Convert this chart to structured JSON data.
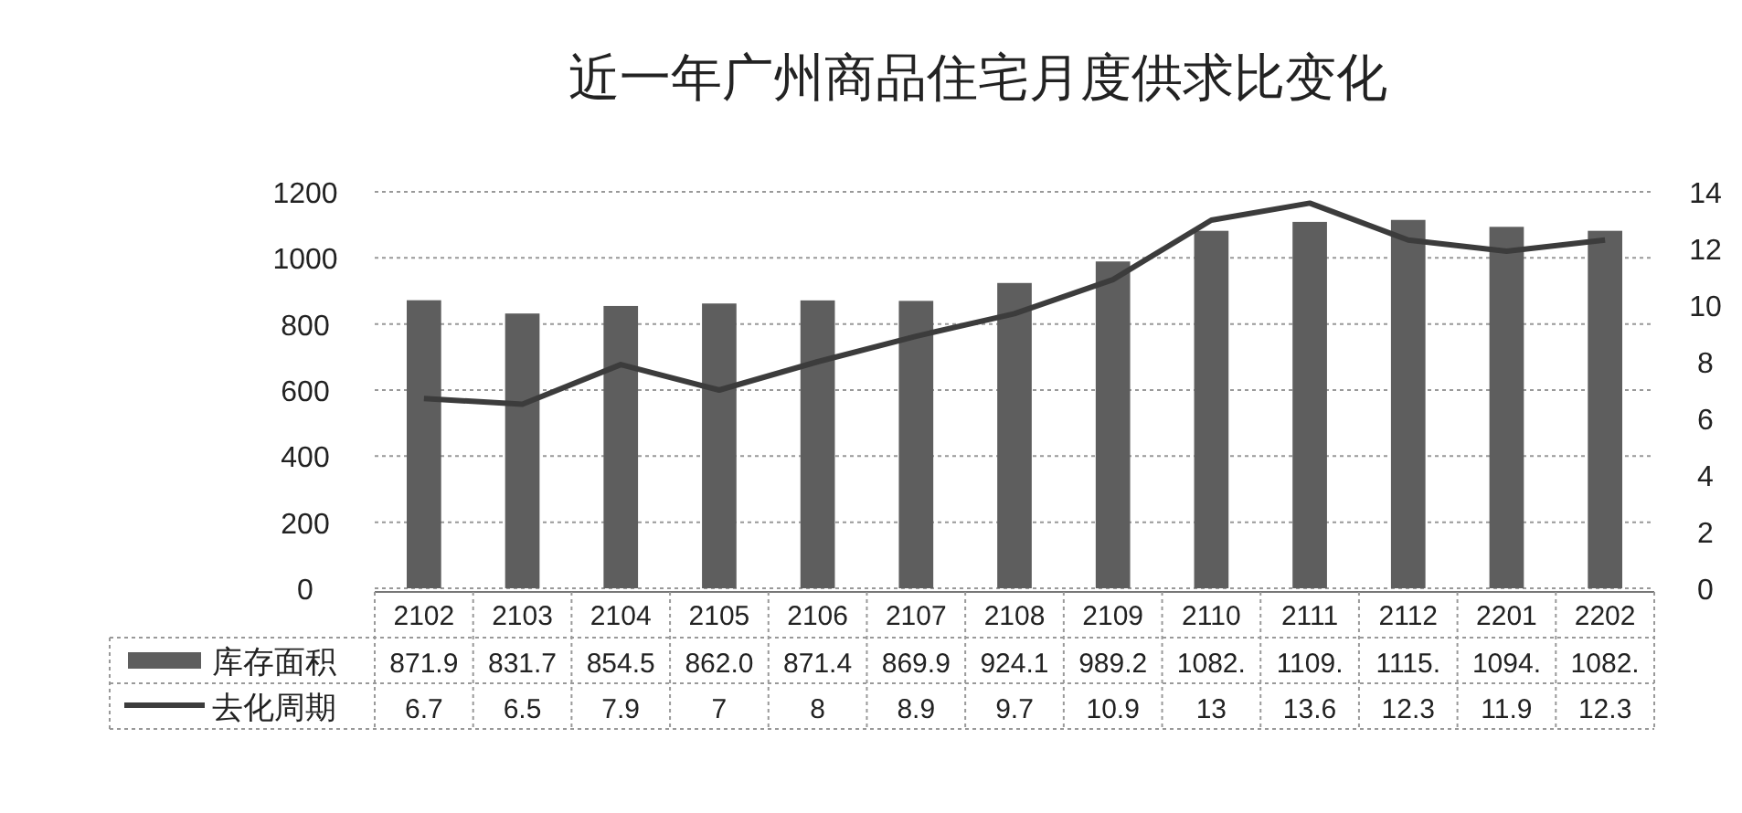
{
  "chart_data": {
    "type": "bar",
    "title": "近一年广州商品住宅月度供求比变化",
    "categories": [
      "2102",
      "2103",
      "2104",
      "2105",
      "2106",
      "2107",
      "2108",
      "2109",
      "2110",
      "2111",
      "2112",
      "2201",
      "2202"
    ],
    "series": [
      {
        "name": "库存面积",
        "color": "#5e5e5e",
        "values": [
          871.9,
          831.7,
          854.5,
          862.0,
          871.4,
          869.9,
          924.1,
          989.2,
          1082,
          1109,
          1115,
          1094,
          1082
        ],
        "value_labels": [
          "871.9",
          "831.7",
          "854.5",
          "862.0",
          "871.4",
          "869.9",
          "924.1",
          "989.2",
          "1082.",
          "1109.",
          "1115.",
          "1094.",
          "1082."
        ]
      },
      {
        "name": "去化周期",
        "type": "line",
        "axis": "y2",
        "color": "#3c3c3c",
        "values": [
          6.7,
          6.5,
          7.9,
          7,
          8,
          8.9,
          9.7,
          10.9,
          13,
          13.6,
          12.3,
          11.9,
          12.3
        ],
        "value_labels": [
          "6.7",
          "6.5",
          "7.9",
          "7",
          "8",
          "8.9",
          "9.7",
          "10.9",
          "13",
          "13.6",
          "12.3",
          "11.9",
          "12.3"
        ]
      }
    ],
    "ylim": [
      0,
      1200
    ],
    "yticks": [
      0,
      200,
      400,
      600,
      800,
      1000,
      1200
    ],
    "y2lim": [
      0,
      14
    ],
    "y2ticks": [
      0,
      2,
      4,
      6,
      8,
      10,
      12,
      14
    ],
    "grid": "y",
    "legend": "bottom"
  }
}
